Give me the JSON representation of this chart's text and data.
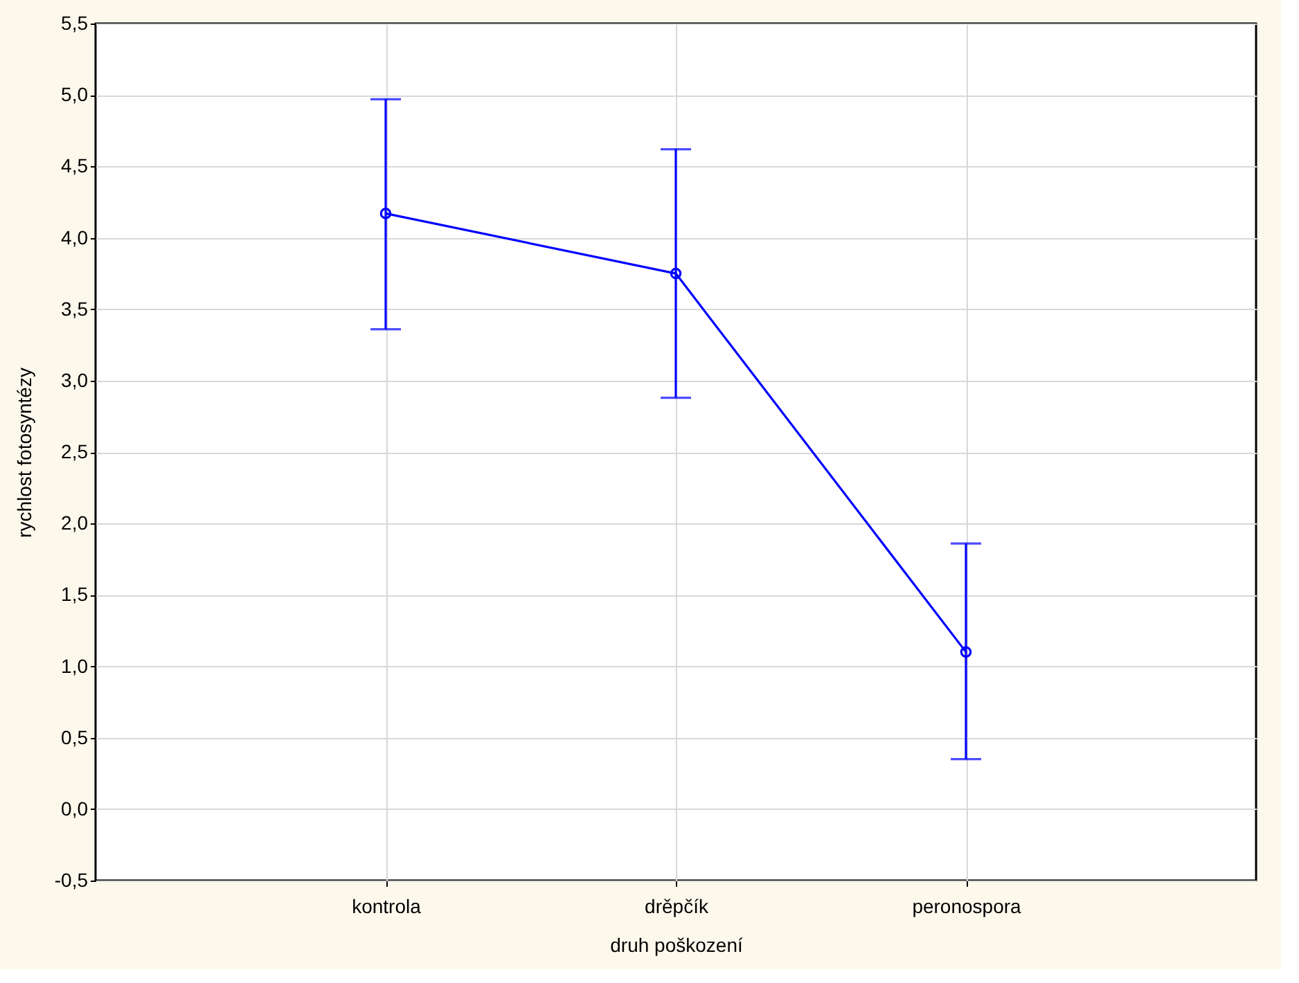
{
  "chart_data": {
    "type": "line",
    "xlabel": "druh poškození",
    "ylabel": "rychlost fotosyntézy",
    "categories": [
      "kontrola",
      "drěpčík",
      "peronospora"
    ],
    "series": [
      {
        "color": "#0000ff",
        "values": [
          4.17,
          3.75,
          1.1
        ],
        "errors": [
          [
            3.36,
            4.97
          ],
          [
            2.88,
            4.62
          ],
          [
            0.35,
            1.86
          ]
        ]
      }
    ],
    "ylim": [
      -0.5,
      5.5
    ],
    "yticks": [
      {
        "value": -0.5,
        "label": "-0,5"
      },
      {
        "value": 0,
        "label": "0,0"
      },
      {
        "value": 0.5,
        "label": "0,5"
      },
      {
        "value": 1,
        "label": "1,0"
      },
      {
        "value": 1.5,
        "label": "1,5"
      },
      {
        "value": 2,
        "label": "2,0"
      },
      {
        "value": 2.5,
        "label": "2,5"
      },
      {
        "value": 3,
        "label": "3,0"
      },
      {
        "value": 3.5,
        "label": "3,5"
      },
      {
        "value": 4,
        "label": "4,0"
      },
      {
        "value": 4.5,
        "label": "4,5"
      },
      {
        "value": 5,
        "label": "5,0"
      },
      {
        "value": 5.5,
        "label": "5,5"
      }
    ],
    "grid": true,
    "marker": "circle",
    "line_style": "solid"
  }
}
